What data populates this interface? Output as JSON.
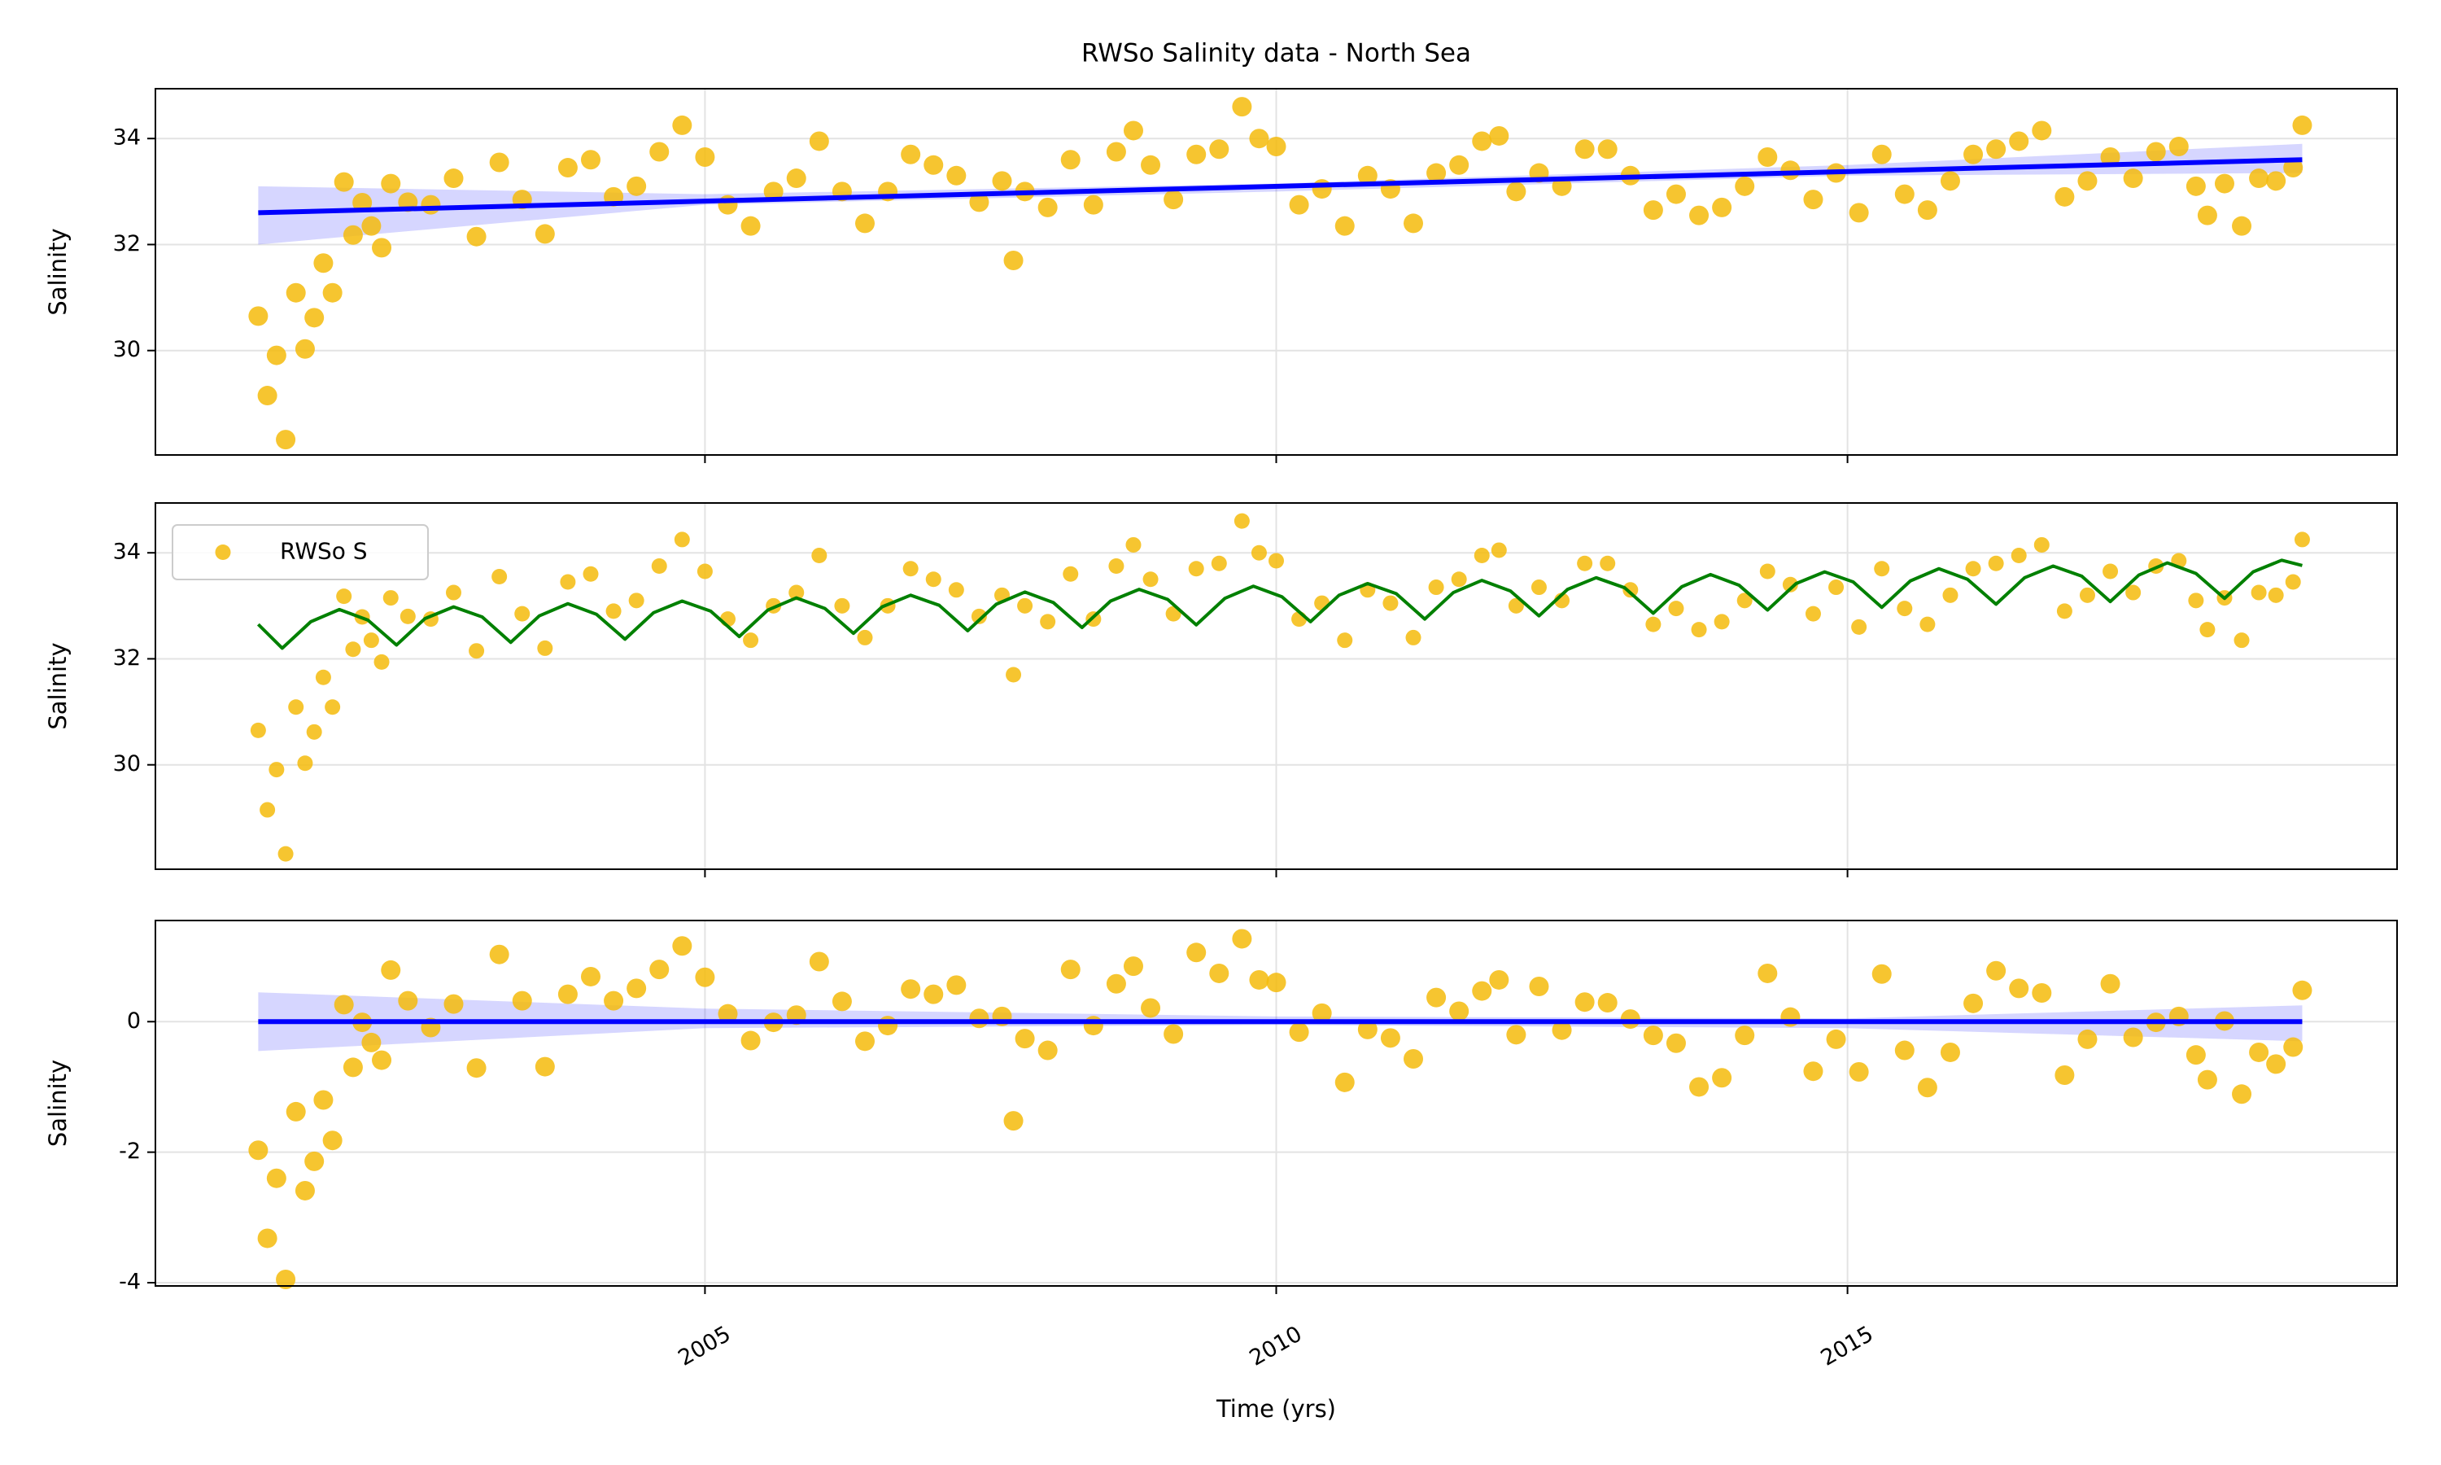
{
  "chart_data": [
    {
      "type": "scatter",
      "title": "RWSo Salinity data - North Sea",
      "ylabel": "Salinity",
      "x": [
        2001.09,
        2001.17,
        2001.25,
        2001.33,
        2001.42,
        2001.5,
        2001.58,
        2001.66,
        2001.74,
        2001.84,
        2001.92,
        2002.0,
        2002.08,
        2002.17,
        2002.25,
        2002.4,
        2002.6,
        2002.8,
        2003.0,
        2003.2,
        2003.4,
        2003.6,
        2003.8,
        2004.0,
        2004.2,
        2004.4,
        2004.6,
        2004.8,
        2005.0,
        2005.2,
        2005.4,
        2005.6,
        2005.8,
        2006.0,
        2006.2,
        2006.4,
        2006.6,
        2006.8,
        2007.0,
        2007.2,
        2007.4,
        2007.6,
        2007.7,
        2007.8,
        2008.0,
        2008.2,
        2008.4,
        2008.6,
        2008.75,
        2008.9,
        2009.1,
        2009.3,
        2009.5,
        2009.7,
        2009.85,
        2010.0,
        2010.2,
        2010.4,
        2010.6,
        2010.8,
        2011.0,
        2011.2,
        2011.4,
        2011.6,
        2011.8,
        2011.95,
        2012.1,
        2012.3,
        2012.5,
        2012.7,
        2012.9,
        2013.1,
        2013.3,
        2013.5,
        2013.7,
        2013.9,
        2014.1,
        2014.3,
        2014.5,
        2014.7,
        2014.9,
        2015.1,
        2015.3,
        2015.5,
        2015.7,
        2015.9,
        2016.1,
        2016.3,
        2016.5,
        2016.7,
        2016.9,
        2017.1,
        2017.3,
        2017.5,
        2017.7,
        2017.9,
        2018.05,
        2018.15,
        2018.3,
        2018.45,
        2018.6,
        2018.75,
        2018.9,
        2018.98
      ],
      "values": [
        30.65,
        29.15,
        29.91,
        28.32,
        31.09,
        30.03,
        30.62,
        31.65,
        31.09,
        33.18,
        32.18,
        32.79,
        32.35,
        31.94,
        33.15,
        32.8,
        32.75,
        33.25,
        32.15,
        33.55,
        32.85,
        32.2,
        33.45,
        33.6,
        32.9,
        33.1,
        33.75,
        34.25,
        33.65,
        32.75,
        32.35,
        33.0,
        33.25,
        33.95,
        33.0,
        32.4,
        33.0,
        33.7,
        33.5,
        33.3,
        32.8,
        33.2,
        31.7,
        33.0,
        32.7,
        33.6,
        32.75,
        33.75,
        34.15,
        33.5,
        32.85,
        33.7,
        33.8,
        34.6,
        34.0,
        33.85,
        32.75,
        33.05,
        32.35,
        33.3,
        33.05,
        32.4,
        33.35,
        33.5,
        33.95,
        34.05,
        33.0,
        33.35,
        33.1,
        33.8,
        33.8,
        33.3,
        32.65,
        32.95,
        32.55,
        32.7,
        33.1,
        33.65,
        33.4,
        32.85,
        33.35,
        32.6,
        33.7,
        32.95,
        32.65,
        33.2,
        33.7,
        33.8,
        33.95,
        34.15,
        32.9,
        33.2,
        33.65,
        33.25,
        33.75,
        33.85,
        33.1,
        32.55,
        33.15,
        32.35,
        33.25,
        33.2,
        33.45,
        34.25
      ],
      "color": "#f5bb0c",
      "fit": {
        "x": [
          2001.09,
          2018.98
        ],
        "values": [
          32.6,
          33.6
        ],
        "color": "#0000ff"
      },
      "band": {
        "x": [
          2001.09,
          2005,
          2010,
          2015,
          2018.98
        ],
        "lower": [
          32.0,
          32.75,
          33.0,
          33.3,
          33.35
        ],
        "upper": [
          33.1,
          32.95,
          33.15,
          33.5,
          33.9
        ],
        "color": "#0000ff"
      },
      "xlim": [
        2000.19,
        2019.81
      ],
      "ylim": [
        28.03,
        34.94
      ],
      "xticks": [
        2005,
        2010,
        2015
      ],
      "yticks": [
        30,
        32,
        34
      ],
      "grid": true,
      "show_xticklabels": false
    },
    {
      "type": "scatter",
      "ylabel": "Salinity",
      "x": [
        2001.09,
        2001.17,
        2001.25,
        2001.33,
        2001.42,
        2001.5,
        2001.58,
        2001.66,
        2001.74,
        2001.84,
        2001.92,
        2002.0,
        2002.08,
        2002.17,
        2002.25,
        2002.4,
        2002.6,
        2002.8,
        2003.0,
        2003.2,
        2003.4,
        2003.6,
        2003.8,
        2004.0,
        2004.2,
        2004.4,
        2004.6,
        2004.8,
        2005.0,
        2005.2,
        2005.4,
        2005.6,
        2005.8,
        2006.0,
        2006.2,
        2006.4,
        2006.6,
        2006.8,
        2007.0,
        2007.2,
        2007.4,
        2007.6,
        2007.7,
        2007.8,
        2008.0,
        2008.2,
        2008.4,
        2008.6,
        2008.75,
        2008.9,
        2009.1,
        2009.3,
        2009.5,
        2009.7,
        2009.85,
        2010.0,
        2010.2,
        2010.4,
        2010.6,
        2010.8,
        2011.0,
        2011.2,
        2011.4,
        2011.6,
        2011.8,
        2011.95,
        2012.1,
        2012.3,
        2012.5,
        2012.7,
        2012.9,
        2013.1,
        2013.3,
        2013.5,
        2013.7,
        2013.9,
        2014.1,
        2014.3,
        2014.5,
        2014.7,
        2014.9,
        2015.1,
        2015.3,
        2015.5,
        2015.7,
        2015.9,
        2016.1,
        2016.3,
        2016.5,
        2016.7,
        2016.9,
        2017.1,
        2017.3,
        2017.5,
        2017.7,
        2017.9,
        2018.05,
        2018.15,
        2018.3,
        2018.45,
        2018.6,
        2018.75,
        2018.9,
        2018.98
      ],
      "series": [
        {
          "name": "RWSo S",
          "color": "#f5bb0c",
          "values": [
            30.65,
            29.15,
            29.91,
            28.32,
            31.09,
            30.03,
            30.62,
            31.65,
            31.09,
            33.18,
            32.18,
            32.79,
            32.35,
            31.94,
            33.15,
            32.8,
            32.75,
            33.25,
            32.15,
            33.55,
            32.85,
            32.2,
            33.45,
            33.6,
            32.9,
            33.1,
            33.75,
            34.25,
            33.65,
            32.75,
            32.35,
            33.0,
            33.25,
            33.95,
            33.0,
            32.4,
            33.0,
            33.7,
            33.5,
            33.3,
            32.8,
            33.2,
            31.7,
            33.0,
            32.7,
            33.6,
            32.75,
            33.75,
            34.15,
            33.5,
            32.85,
            33.7,
            33.8,
            34.6,
            34.0,
            33.85,
            32.75,
            33.05,
            32.35,
            33.3,
            33.05,
            32.4,
            33.35,
            33.5,
            33.95,
            34.05,
            33.0,
            33.35,
            33.1,
            33.8,
            33.8,
            33.3,
            32.65,
            32.95,
            32.55,
            32.7,
            33.1,
            33.65,
            33.4,
            32.85,
            33.35,
            32.6,
            33.7,
            32.95,
            32.65,
            33.2,
            33.7,
            33.8,
            33.95,
            34.15,
            32.9,
            33.2,
            33.65,
            33.25,
            33.75,
            33.85,
            33.1,
            32.55,
            33.15,
            32.35,
            33.25,
            33.2,
            33.45,
            34.25
          ]
        }
      ],
      "fit": {
        "x": [
          2001.09,
          2001.3,
          2001.55,
          2001.8,
          2002.05,
          2002.3,
          2002.55,
          2002.8,
          2003.05,
          2003.3,
          2003.55,
          2003.8,
          2004.05,
          2004.3,
          2004.55,
          2004.8,
          2005.05,
          2005.3,
          2005.55,
          2005.8,
          2006.05,
          2006.3,
          2006.55,
          2006.8,
          2007.05,
          2007.3,
          2007.55,
          2007.8,
          2008.05,
          2008.3,
          2008.55,
          2008.8,
          2009.05,
          2009.3,
          2009.55,
          2009.8,
          2010.05,
          2010.3,
          2010.55,
          2010.8,
          2011.05,
          2011.3,
          2011.55,
          2011.8,
          2012.05,
          2012.3,
          2012.55,
          2012.8,
          2013.05,
          2013.3,
          2013.55,
          2013.8,
          2014.05,
          2014.3,
          2014.55,
          2014.8,
          2015.05,
          2015.3,
          2015.55,
          2015.8,
          2016.05,
          2016.3,
          2016.55,
          2016.8,
          2017.05,
          2017.3,
          2017.55,
          2017.8,
          2018.05,
          2018.3,
          2018.55,
          2018.8,
          2018.98
        ],
        "values": [
          32.65,
          32.2,
          32.7,
          32.93,
          32.73,
          32.26,
          32.76,
          32.98,
          32.79,
          32.31,
          32.81,
          33.04,
          32.84,
          32.37,
          32.87,
          33.09,
          32.9,
          32.42,
          32.92,
          33.15,
          32.95,
          32.48,
          32.98,
          33.2,
          33.01,
          32.53,
          33.03,
          33.26,
          33.06,
          32.59,
          33.09,
          33.31,
          33.12,
          32.64,
          33.14,
          33.37,
          33.17,
          32.7,
          33.2,
          33.42,
          33.23,
          32.75,
          33.25,
          33.48,
          33.28,
          32.81,
          33.31,
          33.53,
          33.34,
          32.86,
          33.36,
          33.59,
          33.39,
          32.92,
          33.42,
          33.64,
          33.45,
          32.97,
          33.47,
          33.7,
          33.5,
          33.03,
          33.53,
          33.75,
          33.56,
          33.08,
          33.58,
          33.81,
          33.61,
          33.14,
          33.64,
          33.86,
          33.76
        ],
        "color": "#008000"
      },
      "xlim": [
        2000.19,
        2019.81
      ],
      "ylim": [
        28.03,
        34.94
      ],
      "xticks": [
        2005,
        2010,
        2015
      ],
      "yticks": [
        30,
        32,
        34
      ],
      "grid": true,
      "legend": "upper left",
      "show_xticklabels": false
    },
    {
      "type": "scatter",
      "ylabel": "Salinity",
      "xlabel": "Time (yrs)",
      "x": [
        2001.09,
        2001.17,
        2001.25,
        2001.33,
        2001.42,
        2001.5,
        2001.58,
        2001.66,
        2001.74,
        2001.84,
        2001.92,
        2002.0,
        2002.08,
        2002.17,
        2002.25,
        2002.4,
        2002.6,
        2002.8,
        2003.0,
        2003.2,
        2003.4,
        2003.6,
        2003.8,
        2004.0,
        2004.2,
        2004.4,
        2004.6,
        2004.8,
        2005.0,
        2005.2,
        2005.4,
        2005.6,
        2005.8,
        2006.0,
        2006.2,
        2006.4,
        2006.6,
        2006.8,
        2007.0,
        2007.2,
        2007.4,
        2007.6,
        2007.7,
        2007.8,
        2008.0,
        2008.2,
        2008.4,
        2008.6,
        2008.75,
        2008.9,
        2009.1,
        2009.3,
        2009.5,
        2009.7,
        2009.85,
        2010.0,
        2010.2,
        2010.4,
        2010.6,
        2010.8,
        2011.0,
        2011.2,
        2011.4,
        2011.6,
        2011.8,
        2011.95,
        2012.1,
        2012.3,
        2012.5,
        2012.7,
        2012.9,
        2013.1,
        2013.3,
        2013.5,
        2013.7,
        2013.9,
        2014.1,
        2014.3,
        2014.5,
        2014.7,
        2014.9,
        2015.1,
        2015.3,
        2015.5,
        2015.7,
        2015.9,
        2016.1,
        2016.3,
        2016.5,
        2016.7,
        2016.9,
        2017.1,
        2017.3,
        2017.5,
        2017.7,
        2017.9,
        2018.05,
        2018.15,
        2018.3,
        2018.45,
        2018.6,
        2018.75,
        2018.9,
        2018.98
      ],
      "values": [
        -1.97,
        -3.32,
        -2.4,
        -3.95,
        -1.38,
        -2.59,
        -2.14,
        -1.2,
        -1.82,
        0.26,
        -0.7,
        -0.01,
        -0.32,
        -0.59,
        0.79,
        0.32,
        -0.09,
        0.27,
        -0.71,
        1.03,
        0.32,
        -0.69,
        0.42,
        0.69,
        0.32,
        0.51,
        0.8,
        1.16,
        0.68,
        0.12,
        -0.29,
        -0.01,
        0.1,
        0.92,
        0.31,
        -0.3,
        -0.06,
        0.5,
        0.42,
        0.56,
        0.05,
        0.08,
        -1.52,
        -0.26,
        -0.44,
        0.8,
        -0.06,
        0.58,
        0.85,
        0.21,
        -0.19,
        1.06,
        0.74,
        1.27,
        0.64,
        0.6,
        -0.16,
        0.13,
        -0.93,
        -0.12,
        -0.25,
        -0.57,
        0.37,
        0.16,
        0.47,
        0.64,
        -0.2,
        0.54,
        -0.13,
        0.3,
        0.29,
        0.04,
        -0.21,
        -0.33,
        -1.0,
        -0.86,
        -0.21,
        0.74,
        0.07,
        -0.76,
        -0.27,
        -0.77,
        0.73,
        -0.44,
        -1.01,
        -0.47,
        0.28,
        0.78,
        0.51,
        0.44,
        -0.82,
        -0.27,
        0.58,
        -0.24,
        -0.01,
        0.08,
        -0.51,
        -0.89,
        0.01,
        -1.11,
        -0.47,
        -0.65,
        -0.39,
        0.48
      ],
      "color": "#f5bb0c",
      "fit": {
        "x": [
          2001.09,
          2018.98
        ],
        "values": [
          0,
          0
        ],
        "color": "#0000ff"
      },
      "band": {
        "x": [
          2001.09,
          2005,
          2010,
          2015,
          2018.98
        ],
        "lower": [
          -0.45,
          -0.1,
          -0.05,
          -0.1,
          -0.3
        ],
        "upper": [
          0.45,
          0.2,
          0.08,
          0.05,
          0.25
        ],
        "color": "#0000ff"
      },
      "xlim": [
        2000.19,
        2019.81
      ],
      "ylim": [
        -4.05,
        1.55
      ],
      "xticks": [
        2005,
        2010,
        2015
      ],
      "yticks": [
        -4,
        -2,
        0
      ],
      "grid": true,
      "show_xticklabels": true
    }
  ]
}
